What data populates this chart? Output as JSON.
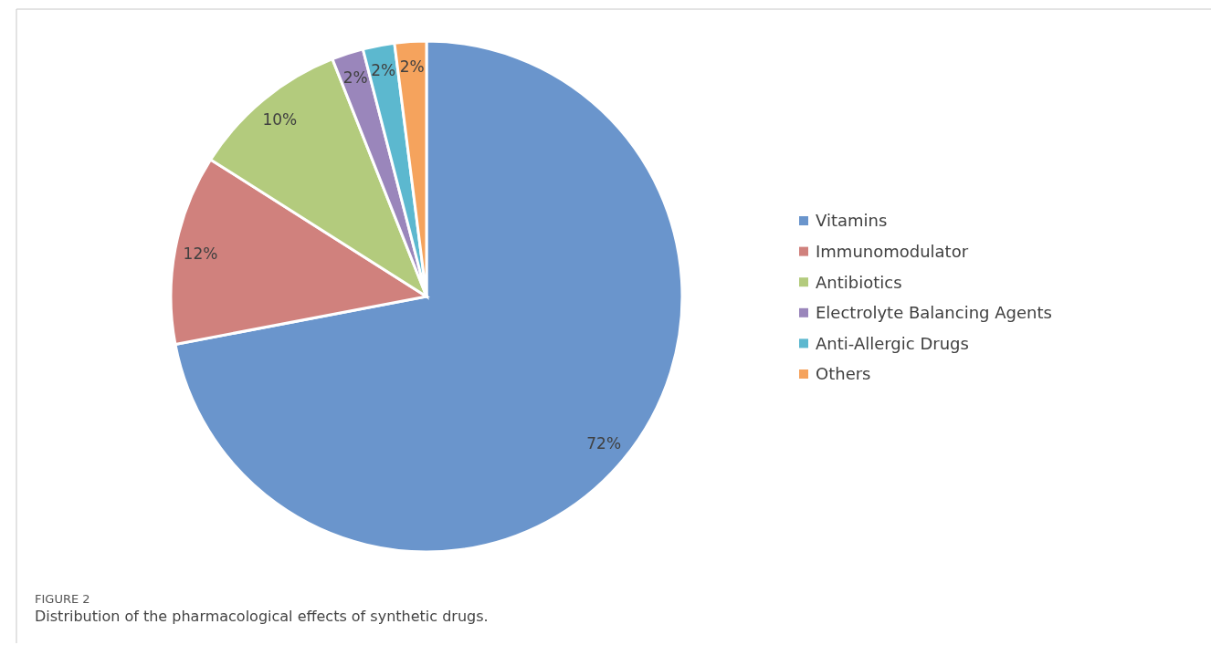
{
  "chart_data": {
    "type": "pie",
    "title": "FIGURE 2",
    "subtitle": "Distribution of the pharmacological effects of synthetic drugs.",
    "categories": [
      "Vitamins",
      "Immunomodulator",
      "Antibiotics",
      "Electrolyte Balancing Agents",
      "Anti-Allergic Drugs",
      "Others"
    ],
    "values": [
      72,
      12,
      10,
      2,
      2,
      2
    ],
    "colors": [
      "#6a95cc",
      "#d0817d",
      "#b3cb7d",
      "#9a86bb",
      "#5cb8cf",
      "#f5a35d"
    ],
    "value_labels": [
      "72%",
      "12%",
      "10%",
      "2%",
      "2%",
      "2%"
    ],
    "legend": "right"
  }
}
